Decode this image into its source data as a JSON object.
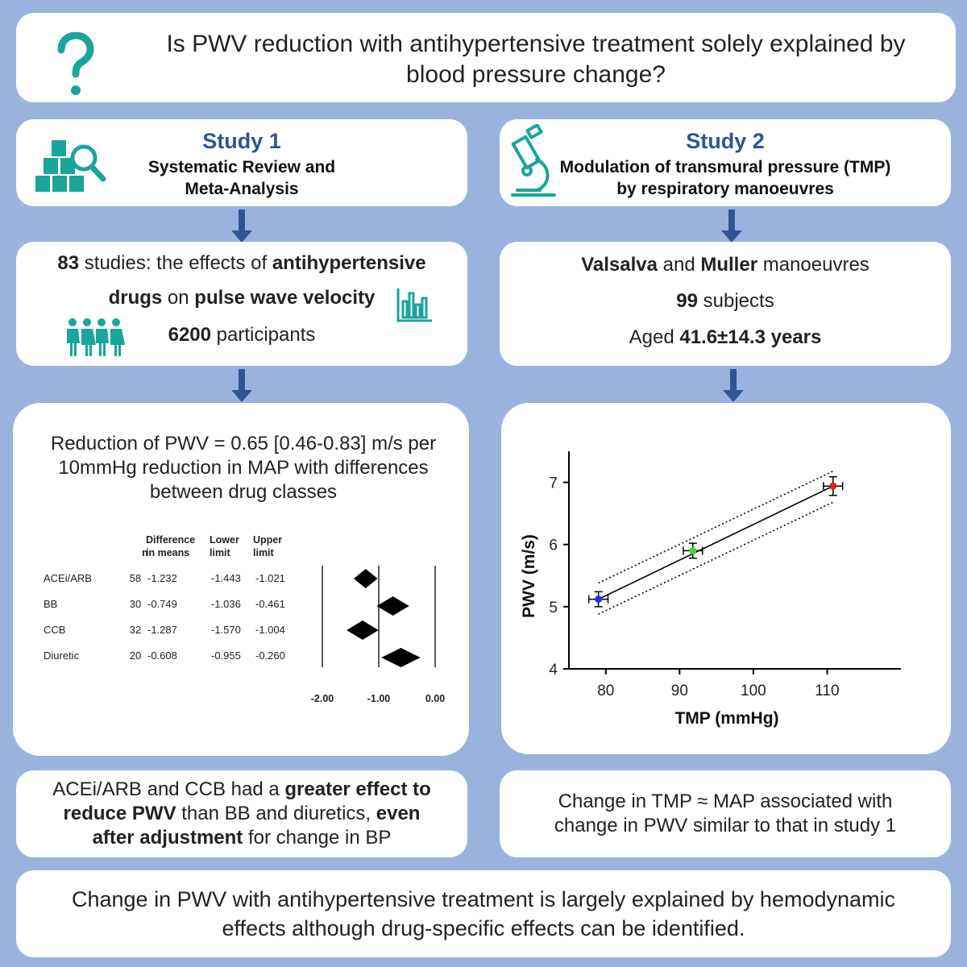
{
  "question": {
    "icon": "question-mark-icon",
    "text": "Is PWV reduction with antihypertensive treatment solely explained by blood pressure change?"
  },
  "study1": {
    "heading": "Study 1",
    "subtitle_line1": "Systematic Review and",
    "subtitle_line2": "Meta-Analysis",
    "icon": "boxes-magnifier-icon",
    "details": {
      "n_studies": "83",
      "line1_a": " studies: the effects of ",
      "line1_b": "antihypertensive",
      "line2_a": "drugs",
      "line2_b": " on ",
      "line2_c": "pulse wave velocity",
      "participants_num": "6200",
      "participants_text": " participants",
      "people_icon": "people-group-icon",
      "chart_icon": "bar-chart-icon"
    },
    "result_text": "Reduction of PWV = 0.65 [0.46-0.83] m/s per 10mmHg reduction in MAP with differences between drug classes",
    "conclusion": {
      "p1": "ACEi/ARB and CCB had a ",
      "b1": "greater effect to reduce PWV",
      "p2": " than BB and diuretics, ",
      "b2": "even after adjustment",
      "p3": " for change in BP"
    }
  },
  "study2": {
    "heading": "Study 2",
    "subtitle_line1": "Modulation of transmural pressure (TMP)",
    "subtitle_line2": "by respiratory manoeuvres",
    "icon": "microscope-icon",
    "details": {
      "b1": "Valsalva",
      "p1": " and ",
      "b2": "Muller",
      "p2": " manoeuvres",
      "subjects_num": "99",
      "subjects_text": " subjects",
      "aged_text": "Aged ",
      "aged_value": "41.6±14.3 years"
    },
    "conclusion": "Change in TMP ≈ MAP associated with change in PWV similar to that in study 1"
  },
  "footer": "Change in PWV with antihypertensive treatment is largely explained by hemodynamic effects although drug-specific effects can be identified.",
  "colors": {
    "background": "#9bb2de",
    "heading": "#2f5597",
    "arrow": "#2f5597",
    "icon": "#1aa59a"
  },
  "chart_data": [
    {
      "type": "forest",
      "columns": [
        "n",
        "Difference in means",
        "Lower limit",
        "Upper limit"
      ],
      "rows": [
        {
          "label": "ACEi/ARB",
          "n": "58",
          "diff": "-1.232",
          "lower": "-1.443",
          "upper": "-1.021",
          "value": -1.232,
          "lo": -1.443,
          "hi": -1.021
        },
        {
          "label": "BB",
          "n": "30",
          "diff": "-0.749",
          "lower": "-1.036",
          "upper": "-0.461",
          "value": -0.749,
          "lo": -1.036,
          "hi": -0.461
        },
        {
          "label": "CCB",
          "n": "32",
          "diff": "-1.287",
          "lower": "-1.570",
          "upper": "-1.004",
          "value": -1.287,
          "lo": -1.57,
          "hi": -1.004
        },
        {
          "label": "Diuretic",
          "n": "20",
          "diff": "-0.608",
          "lower": "-0.955",
          "upper": "-0.260",
          "value": -0.608,
          "lo": -0.955,
          "hi": -0.26
        }
      ],
      "xticks": [
        "-2.00",
        "-1.00",
        "0.00"
      ],
      "xlim": [
        -2,
        0
      ],
      "reference_lines": [
        -2,
        -1,
        0
      ]
    },
    {
      "type": "scatter",
      "xlabel": "TMP (mmHg)",
      "ylabel": "PWV (m/s)",
      "xlim": [
        75,
        120
      ],
      "ylim": [
        4,
        7.5
      ],
      "xticks": [
        "80",
        "90",
        "100",
        "110"
      ],
      "yticks": [
        "4",
        "5",
        "6",
        "7"
      ],
      "points": [
        {
          "x": 79,
          "y": 5.12,
          "xerr": 1.3,
          "yerr": 0.12,
          "color": "#2233dd"
        },
        {
          "x": 91.8,
          "y": 5.9,
          "xerr": 1.3,
          "yerr": 0.12,
          "color": "#33dd33"
        },
        {
          "x": 110.8,
          "y": 6.94,
          "xerr": 1.3,
          "yerr": 0.15,
          "color": "#dd2222"
        }
      ],
      "fit": {
        "x1": 79,
        "y1": 5.12,
        "x2": 110.8,
        "y2": 6.94
      },
      "ci_upper": {
        "x1": 79,
        "y1": 5.38,
        "x2": 110.8,
        "y2": 7.18
      },
      "ci_lower": {
        "x1": 79,
        "y1": 4.88,
        "x2": 110.8,
        "y2": 6.68
      }
    }
  ]
}
